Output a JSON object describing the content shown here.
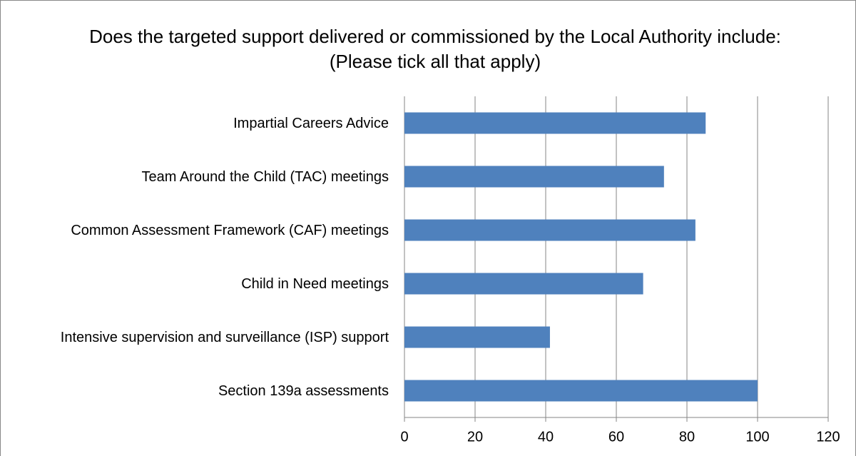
{
  "chart_data": {
    "type": "bar",
    "orientation": "horizontal",
    "title": "Does the targeted support delivered or commissioned by the Local Authority include: (Please tick all that apply)",
    "categories": [
      "Impartial Careers Advice",
      "Team Around the Child (TAC) meetings",
      "Common Assessment Framework (CAF) meetings",
      "Child in Need meetings",
      "Intensive supervision and surveillance (ISP) support",
      "Section 139a assessments"
    ],
    "values": [
      85.3,
      73.5,
      82.4,
      67.6,
      41.2,
      100
    ],
    "color": "#4f81bd",
    "xlim": [
      0,
      120
    ],
    "xticks": [
      0,
      20,
      40,
      60,
      80,
      100,
      120
    ],
    "grid": true
  }
}
